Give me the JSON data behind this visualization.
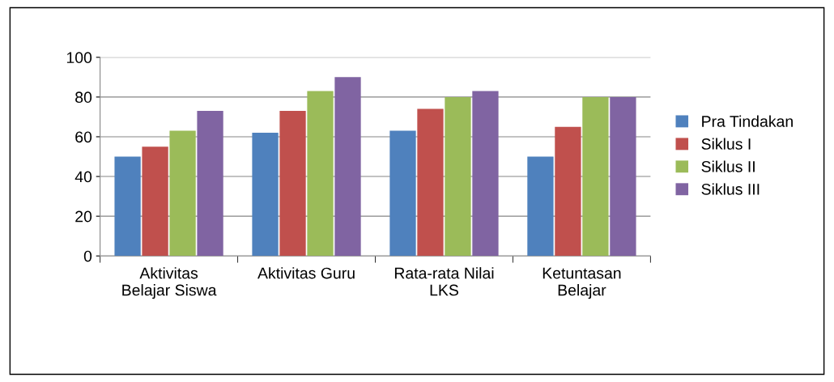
{
  "chart_data": {
    "type": "bar",
    "categories": [
      "Aktivitas\nBelajar Siswa",
      "Aktivitas Guru",
      "Rata-rata Nilai\nLKS",
      "Ketuntasan\nBelajar"
    ],
    "series": [
      {
        "name": "Pra Tindakan",
        "color": "#4f81bd",
        "values": [
          50,
          62,
          63,
          50
        ]
      },
      {
        "name": "Siklus I",
        "color": "#c0504d",
        "values": [
          55,
          73,
          74,
          65
        ]
      },
      {
        "name": "Siklus II",
        "color": "#9bbb59",
        "values": [
          63,
          83,
          80,
          80
        ]
      },
      {
        "name": "Siklus III",
        "color": "#8064a2",
        "values": [
          73,
          90,
          83,
          80
        ]
      }
    ],
    "ylim": [
      0,
      100
    ],
    "yticks": [
      0,
      20,
      40,
      60,
      80,
      100
    ],
    "grid": "y",
    "legend": "right"
  }
}
